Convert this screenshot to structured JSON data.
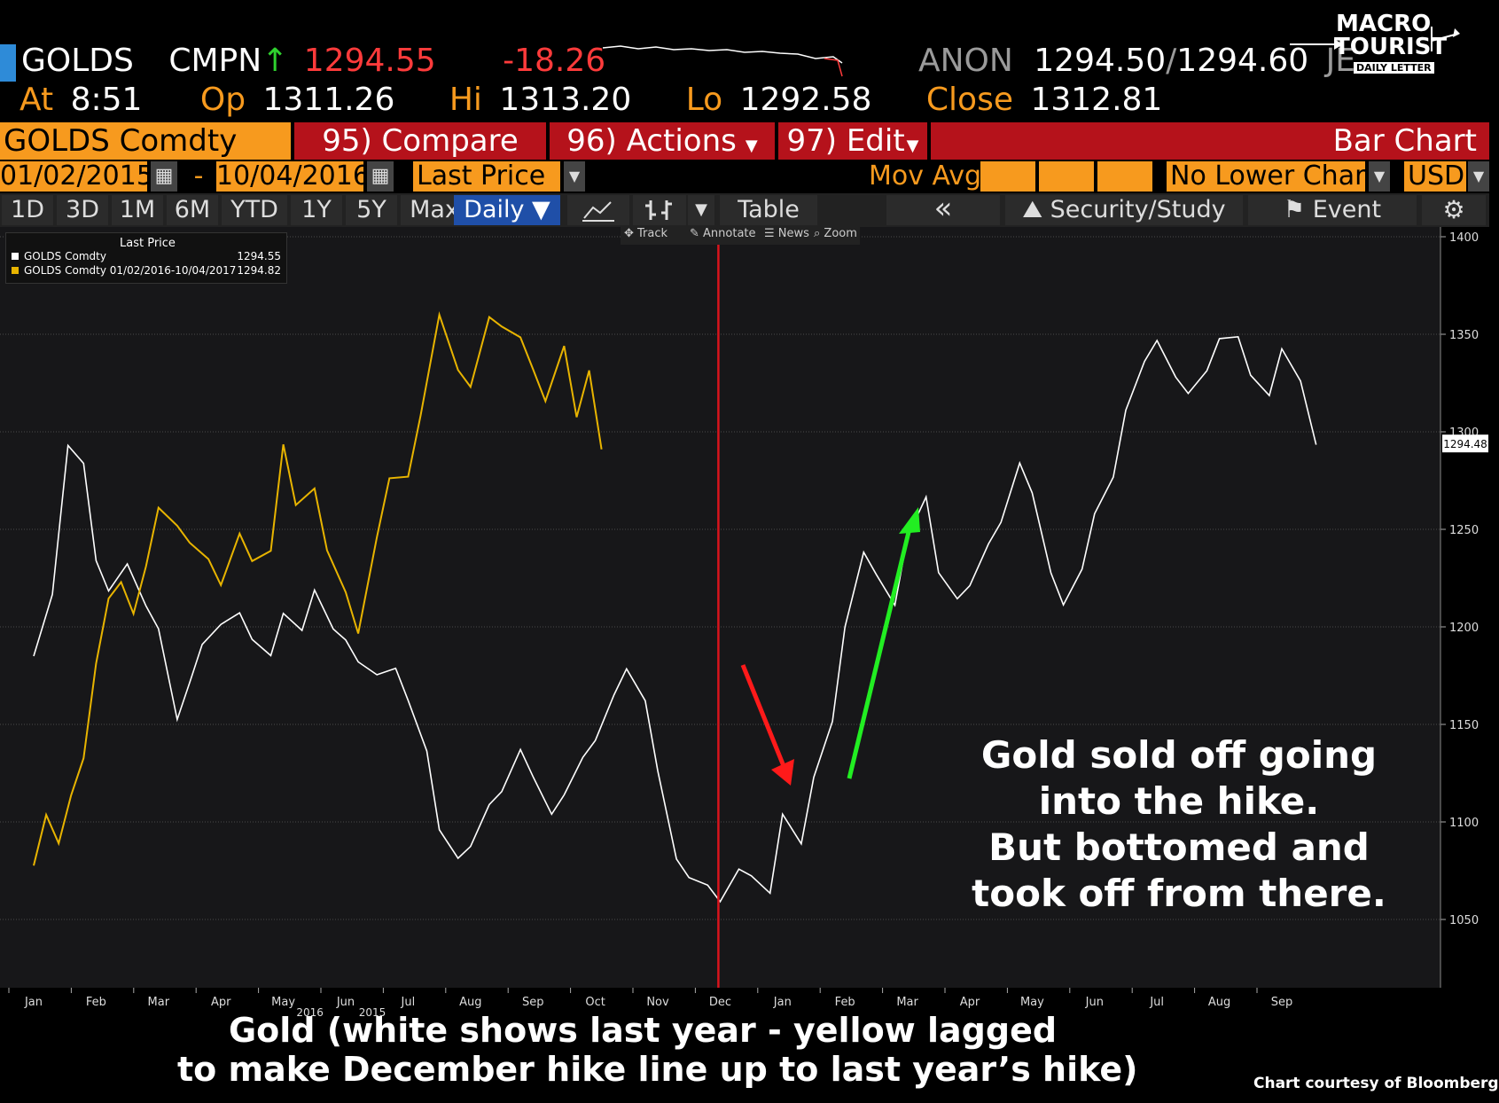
{
  "logo": {
    "line1": "MACRO",
    "line2": "TOURIST",
    "line3": "DAILY LETTER"
  },
  "ticker": {
    "symbol": "GOLDS",
    "source": "CMPN",
    "arrow": "↑",
    "last": "1294.55",
    "change": "-18.26",
    "quote_source": "ANON",
    "bid": "1294.50",
    "slash": "/",
    "ask": "1294.60",
    "trail": "JE",
    "at_label": "At",
    "at_time": "8:51",
    "op_label": "Op",
    "op": "1311.26",
    "hi_label": "Hi",
    "hi": "1313.20",
    "lo_label": "Lo",
    "lo": "1292.58",
    "close_label": "Close",
    "close": "1312.81"
  },
  "menu": {
    "security": "GOLDS Comdty",
    "compare": "95) Compare",
    "actions": "96) Actions",
    "edit": "97) Edit",
    "chart_type": "Bar Chart"
  },
  "range": {
    "start": "01/02/2015",
    "dash": "-",
    "end": "10/04/2016",
    "field": "Last Price",
    "mov_avg": "Mov Avg",
    "lower_chart": "No Lower Chart",
    "currency": "USD"
  },
  "toolbar": {
    "periods": [
      "1D",
      "3D",
      "1M",
      "6M",
      "YTD",
      "1Y",
      "5Y",
      "Max"
    ],
    "freq": "Daily ▼",
    "table": "Table",
    "collapse": "«",
    "study": "Security/Study",
    "event": "Event"
  },
  "tools": {
    "track": "Track",
    "annotate": "Annotate",
    "news": "News",
    "zoom": "Zoom"
  },
  "legend": {
    "title": "Last Price",
    "s1_name": "GOLDS Comdty",
    "s1_value": "1294.55",
    "s2_name": "GOLDS Comdty 01/02/2016-10/04/2017",
    "s2_value": "1294.82"
  },
  "annotation": [
    "Gold sold off going",
    "into the hike.",
    "But bottomed and",
    "took off from there."
  ],
  "caption": [
    "Gold (white shows last year - yellow lagged",
    "to make December hike line up to last year’s hike)"
  ],
  "credit": "Chart courtesy of Bloomberg",
  "chart_data": {
    "type": "line",
    "yticks": [
      1050,
      1100,
      1150,
      1200,
      1250,
      1300,
      1350,
      1400
    ],
    "ylim": [
      1015,
      1405
    ],
    "last_marker": "1294.48",
    "year_labels": [
      {
        "label": "2015",
        "after": "Jun"
      },
      {
        "label": "2016",
        "after": "May"
      }
    ],
    "x_months": [
      "Jan",
      "Feb",
      "Mar",
      "Apr",
      "May",
      "Jun",
      "Jul",
      "Aug",
      "Sep",
      "Oct",
      "Nov",
      "Dec",
      "Jan",
      "Feb",
      "Mar",
      "Apr",
      "May",
      "Jun",
      "Jul",
      "Aug",
      "Sep"
    ],
    "hike_marker_month_index": 11.0,
    "series": [
      {
        "color": "#ffffff",
        "x": [
          0,
          0.3,
          0.55,
          0.8,
          1.0,
          1.2,
          1.5,
          1.8,
          2.0,
          2.3,
          2.5,
          2.7,
          3.0,
          3.3,
          3.5,
          3.8,
          4.0,
          4.3,
          4.5,
          4.8,
          5.0,
          5.2,
          5.5,
          5.8,
          6.0,
          6.3,
          6.5,
          6.8,
          7.0,
          7.3,
          7.5,
          7.8,
          8.0,
          8.3,
          8.5,
          8.8,
          9.0,
          9.3,
          9.5,
          9.8,
          10.0,
          10.3,
          10.5,
          10.8,
          11.0,
          11.3,
          11.5,
          11.8,
          12.0,
          12.3,
          12.5,
          12.8,
          13.0,
          13.3,
          13.5,
          13.8,
          14.0,
          14.3,
          14.5,
          14.8,
          15.0,
          15.3,
          15.5,
          15.8,
          16.0,
          16.3,
          16.5,
          16.8,
          17.0,
          17.3,
          17.5,
          17.8,
          18.0,
          18.3,
          18.5,
          18.8,
          19.0,
          19.3,
          19.5,
          19.8,
          20.0,
          20.3,
          20.55
        ],
        "y": [
          1185,
          1215,
          1290,
          1280,
          1230,
          1215,
          1230,
          1210,
          1200,
          1155,
          1175,
          1195,
          1205,
          1210,
          1195,
          1185,
          1205,
          1195,
          1215,
          1195,
          1190,
          1180,
          1175,
          1180,
          1165,
          1140,
          1100,
          1085,
          1090,
          1110,
          1115,
          1135,
          1120,
          1100,
          1110,
          1130,
          1140,
          1165,
          1180,
          1165,
          1130,
          1085,
          1075,
          1070,
          1060,
          1075,
          1070,
          1060,
          1100,
          1085,
          1120,
          1150,
          1200,
          1240,
          1230,
          1215,
          1250,
          1270,
          1230,
          1215,
          1220,
          1240,
          1250,
          1280,
          1265,
          1225,
          1210,
          1230,
          1260,
          1280,
          1315,
          1340,
          1350,
          1330,
          1320,
          1330,
          1345,
          1345,
          1325,
          1315,
          1340,
          1325,
          1294
        ]
      },
      {
        "color": "#e8b400",
        "x": [
          0,
          0.2,
          0.4,
          0.6,
          0.8,
          1.0,
          1.2,
          1.4,
          1.6,
          1.8,
          2.0,
          2.3,
          2.5,
          2.8,
          3.0,
          3.3,
          3.5,
          3.8,
          4.0,
          4.2,
          4.5,
          4.7,
          5.0,
          5.2,
          5.5,
          5.7,
          6.0,
          6.2,
          6.5,
          6.8,
          7.0,
          7.3,
          7.5,
          7.8,
          8.0,
          8.2,
          8.5,
          8.7,
          8.9,
          9.1
        ],
        "y": [
          1075,
          1100,
          1085,
          1110,
          1130,
          1180,
          1215,
          1225,
          1210,
          1235,
          1265,
          1255,
          1245,
          1235,
          1220,
          1245,
          1230,
          1235,
          1290,
          1260,
          1270,
          1240,
          1220,
          1200,
          1250,
          1280,
          1280,
          1310,
          1360,
          1330,
          1320,
          1355,
          1350,
          1345,
          1330,
          1315,
          1345,
          1310,
          1335,
          1295
        ]
      }
    ]
  }
}
